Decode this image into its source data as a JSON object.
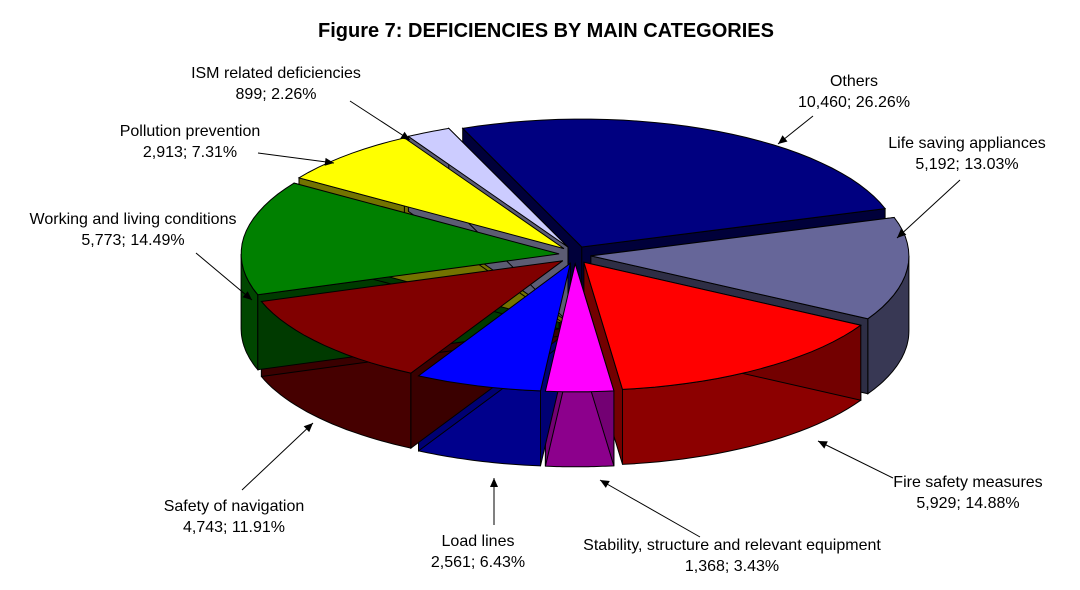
{
  "chart_data": {
    "type": "pie",
    "title": "Figure 7: DEFICIENCIES BY MAIN CATEGORIES",
    "three_d": true,
    "exploded": true,
    "slices": [
      {
        "name": "Others",
        "value": 10460,
        "percent": "26.26%",
        "value_label": "10,460; 26.26%",
        "color": "#000080"
      },
      {
        "name": "Life saving appliances",
        "value": 5192,
        "percent": "13.03%",
        "value_label": "5,192; 13.03%",
        "color": "#666699"
      },
      {
        "name": "Fire safety measures",
        "value": 5929,
        "percent": "14.88%",
        "value_label": "5,929; 14.88%",
        "color": "#ff0000"
      },
      {
        "name": "Stability, structure and relevant equipment",
        "value": 1368,
        "percent": "3.43%",
        "value_label": "1,368; 3.43%",
        "color": "#ff00ff"
      },
      {
        "name": "Load lines",
        "value": 2561,
        "percent": "6.43%",
        "value_label": "2,561; 6.43%",
        "color": "#0000ff"
      },
      {
        "name": "Safety of navigation",
        "value": 4743,
        "percent": "11.91%",
        "value_label": "4,743; 11.91%",
        "color": "#800000"
      },
      {
        "name": "Working and living conditions",
        "value": 5773,
        "percent": "14.49%",
        "value_label": "5,773; 14.49%",
        "color": "#008000"
      },
      {
        "name": "Pollution prevention",
        "value": 2913,
        "percent": "7.31%",
        "value_label": "2,913; 7.31%",
        "color": "#ffff00"
      },
      {
        "name": "ISM related deficiencies",
        "value": 899,
        "percent": "2.26%",
        "value_label": "899; 2.26%",
        "color": "#ccccff"
      }
    ]
  }
}
